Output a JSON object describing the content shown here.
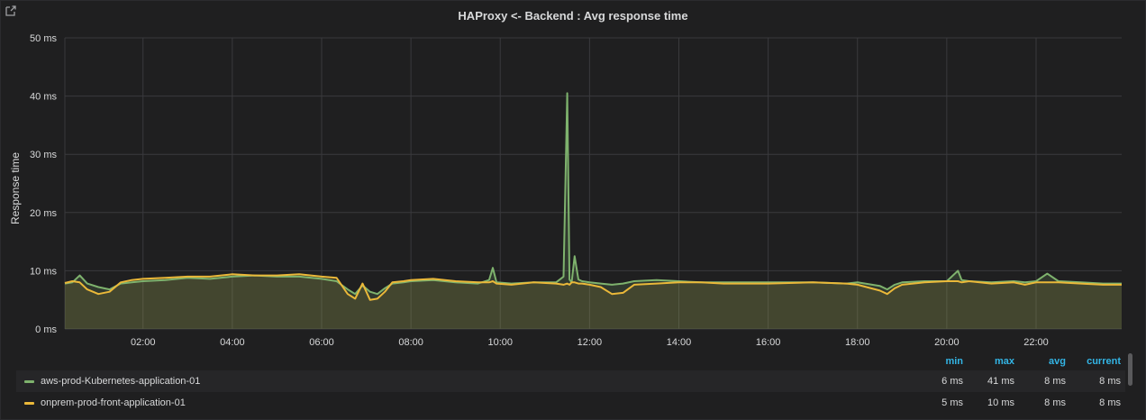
{
  "panel": {
    "title": "HAProxy <- Backend : Avg response time",
    "link_icon": "external-link-icon"
  },
  "chart_data": {
    "type": "area",
    "title": "HAProxy <- Backend : Avg response time",
    "ylabel": "Response time",
    "ylim": [
      0,
      50
    ],
    "y_ticks": [
      "0 ms",
      "10 ms",
      "20 ms",
      "30 ms",
      "40 ms",
      "50 ms"
    ],
    "xlim": [
      "00:15",
      "23:55"
    ],
    "x_ticks": [
      "02:00",
      "04:00",
      "06:00",
      "08:00",
      "10:00",
      "12:00",
      "14:00",
      "16:00",
      "18:00",
      "20:00",
      "22:00"
    ],
    "grid": true,
    "legend": "bottom",
    "series": [
      {
        "name": "aws-prod-Kubernetes-application-01",
        "color": "#7eb26d",
        "x": [
          "00:15",
          "00:25",
          "00:35",
          "00:45",
          "01:00",
          "01:15",
          "01:30",
          "01:45",
          "02:00",
          "02:30",
          "03:00",
          "03:30",
          "04:00",
          "04:30",
          "05:00",
          "05:30",
          "06:00",
          "06:20",
          "06:35",
          "06:45",
          "06:55",
          "07:05",
          "07:15",
          "07:25",
          "07:35",
          "07:50",
          "08:00",
          "08:30",
          "09:00",
          "09:30",
          "09:45",
          "09:50",
          "09:55",
          "10:15",
          "10:45",
          "11:15",
          "11:25",
          "11:30",
          "11:33",
          "11:36",
          "11:40",
          "11:45",
          "11:50",
          "12:00",
          "12:15",
          "12:30",
          "12:45",
          "13:00",
          "13:30",
          "14:00",
          "14:30",
          "15:00",
          "16:00",
          "17:00",
          "17:45",
          "18:00",
          "18:30",
          "18:40",
          "18:50",
          "19:00",
          "19:30",
          "20:00",
          "20:15",
          "20:20",
          "20:30",
          "21:00",
          "21:30",
          "21:45",
          "22:00",
          "22:15",
          "22:30",
          "23:00",
          "23:30",
          "23:55"
        ],
        "values": [
          7.8,
          8.0,
          9.2,
          7.8,
          7.2,
          6.8,
          7.8,
          8.0,
          8.2,
          8.4,
          8.8,
          8.6,
          9.0,
          9.2,
          9.0,
          9.0,
          8.6,
          8.2,
          6.8,
          6.0,
          7.5,
          6.4,
          6.0,
          7.0,
          7.8,
          8.0,
          8.2,
          8.4,
          8.0,
          7.8,
          8.4,
          10.5,
          8.0,
          7.8,
          8.0,
          8.0,
          9.0,
          40.5,
          8.5,
          8.0,
          12.5,
          8.5,
          8.2,
          8.0,
          7.8,
          7.6,
          7.8,
          8.2,
          8.4,
          8.2,
          8.0,
          8.0,
          8.0,
          8.0,
          7.8,
          8.0,
          7.4,
          6.8,
          7.6,
          8.0,
          8.2,
          8.2,
          10.0,
          8.4,
          8.2,
          8.0,
          8.2,
          8.0,
          8.2,
          9.5,
          8.2,
          8.0,
          7.8,
          7.8
        ]
      },
      {
        "name": "onprem-prod-front-application-01",
        "color": "#eab839",
        "x": [
          "00:15",
          "00:25",
          "00:35",
          "00:45",
          "01:00",
          "01:15",
          "01:30",
          "01:45",
          "02:00",
          "02:30",
          "03:00",
          "03:30",
          "04:00",
          "04:30",
          "05:00",
          "05:30",
          "06:00",
          "06:20",
          "06:35",
          "06:45",
          "06:55",
          "07:05",
          "07:15",
          "07:25",
          "07:35",
          "07:50",
          "08:00",
          "08:30",
          "09:00",
          "09:30",
          "09:45",
          "09:50",
          "09:55",
          "10:15",
          "10:45",
          "11:15",
          "11:25",
          "11:30",
          "11:33",
          "11:36",
          "11:40",
          "11:45",
          "11:50",
          "12:00",
          "12:15",
          "12:30",
          "12:45",
          "13:00",
          "13:30",
          "14:00",
          "14:30",
          "15:00",
          "16:00",
          "17:00",
          "17:45",
          "18:00",
          "18:30",
          "18:40",
          "18:50",
          "19:00",
          "19:30",
          "20:00",
          "20:15",
          "20:20",
          "20:30",
          "21:00",
          "21:30",
          "21:45",
          "22:00",
          "22:15",
          "22:30",
          "23:00",
          "23:30",
          "23:55"
        ],
        "values": [
          7.9,
          8.2,
          8.0,
          6.8,
          6.0,
          6.4,
          8.0,
          8.4,
          8.6,
          8.8,
          9.0,
          9.0,
          9.4,
          9.2,
          9.2,
          9.4,
          9.0,
          8.8,
          6.0,
          5.2,
          7.8,
          5.0,
          5.2,
          6.4,
          8.0,
          8.2,
          8.4,
          8.6,
          8.2,
          8.0,
          8.0,
          8.2,
          7.8,
          7.6,
          8.0,
          7.8,
          7.6,
          7.8,
          7.6,
          8.0,
          8.0,
          7.8,
          7.8,
          7.6,
          7.2,
          6.0,
          6.2,
          7.6,
          7.8,
          8.0,
          8.0,
          7.8,
          7.8,
          8.0,
          7.8,
          7.6,
          6.6,
          6.0,
          7.0,
          7.6,
          8.0,
          8.2,
          8.2,
          8.0,
          8.2,
          7.8,
          8.0,
          7.6,
          8.0,
          8.0,
          8.0,
          7.8,
          7.6,
          7.6
        ]
      }
    ]
  },
  "legend": {
    "headers": {
      "min": "min",
      "max": "max",
      "avg": "avg",
      "current": "current"
    },
    "rows": [
      {
        "name": "aws-prod-Kubernetes-application-01",
        "color": "#7eb26d",
        "min": "6 ms",
        "max": "41 ms",
        "avg": "8 ms",
        "current": "8 ms"
      },
      {
        "name": "onprem-prod-front-application-01",
        "color": "#eab839",
        "min": "5 ms",
        "max": "10 ms",
        "avg": "8 ms",
        "current": "8 ms"
      }
    ]
  }
}
